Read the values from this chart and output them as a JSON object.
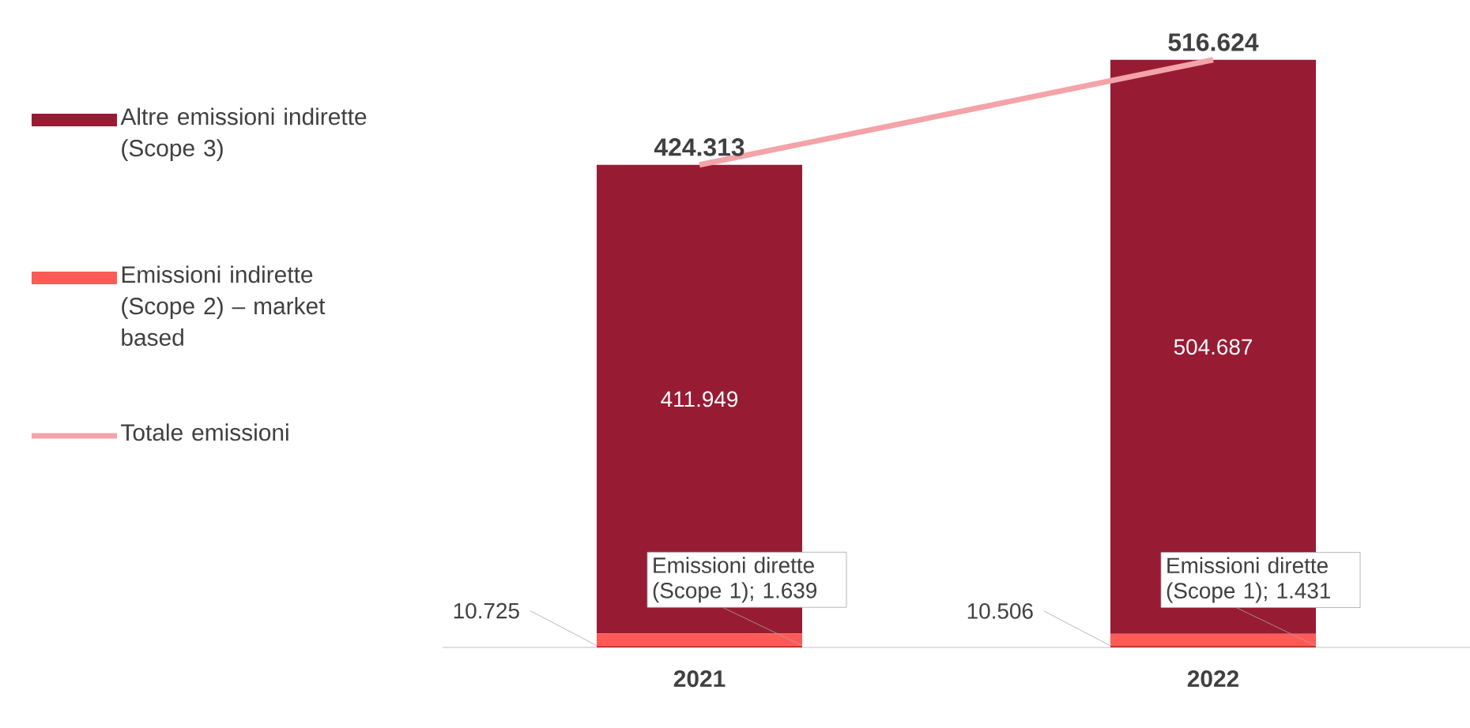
{
  "chart_data": {
    "type": "bar",
    "stacked": true,
    "categories": [
      "2021",
      "2022"
    ],
    "legend": "left",
    "tick_labels": "x",
    "series": [
      {
        "name": "Emissioni dirette (Scope 1);",
        "color": "#c0392b",
        "values": [
          1639,
          1431
        ],
        "value_labels": [
          "1.639",
          "1.431"
        ]
      },
      {
        "name": "Emissioni indirette (Scope 2) – market based",
        "color": "#ff5a55",
        "values": [
          10725,
          10506
        ],
        "value_labels": [
          "10.725",
          "10.506"
        ]
      },
      {
        "name": "Altre emissioni indirette (Scope 3)",
        "color": "#981b34",
        "values": [
          411949,
          504687
        ],
        "value_labels": [
          "411.949",
          "504.687"
        ]
      },
      {
        "name": "Totale emissioni",
        "type": "line",
        "color": "#f4a3a8",
        "values": [
          424313,
          516624
        ],
        "value_labels": [
          "424.313",
          "516.624"
        ]
      }
    ]
  }
}
